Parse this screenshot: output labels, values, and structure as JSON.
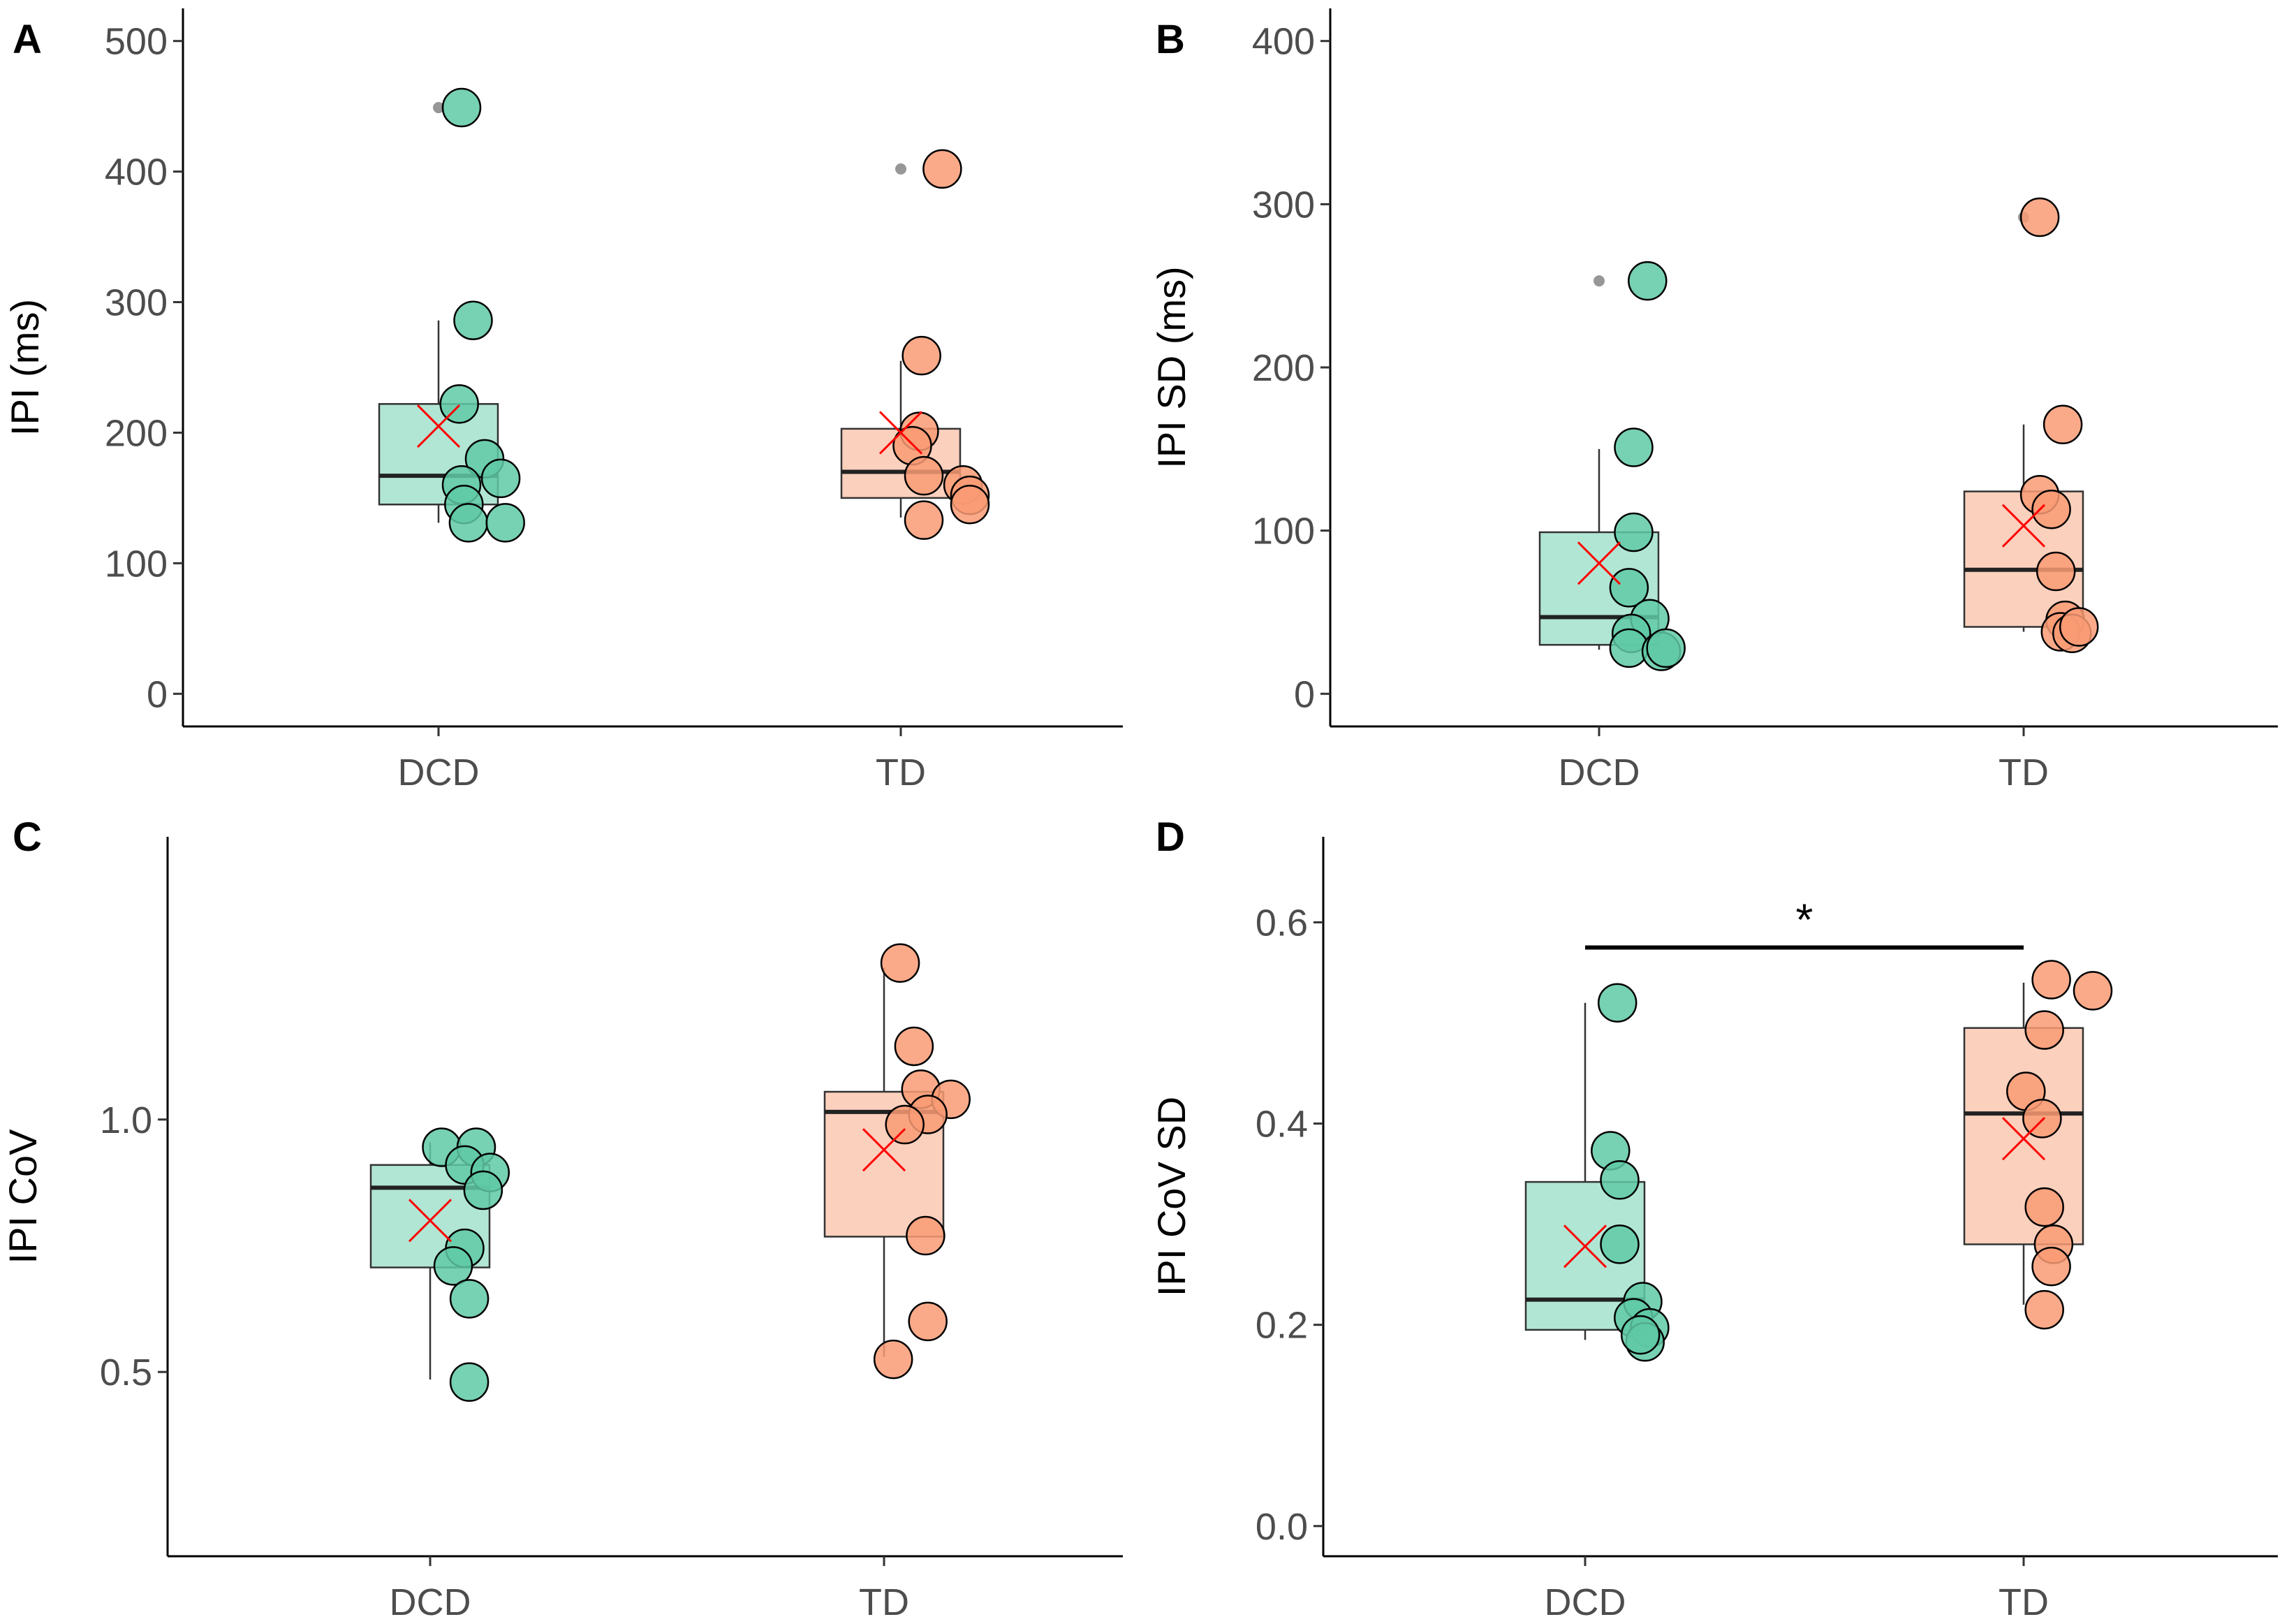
{
  "colors": {
    "DCD_fill": "#5fc9a6",
    "DCD_box": "#b2e6d4",
    "TD_fill": "#f99b74",
    "TD_box": "#fbd0bd",
    "mean_marker": "#ff0000",
    "outlier": "#8c8c8c",
    "stroke": "#000000"
  },
  "chart_data": [
    {
      "panel": "A",
      "type": "box",
      "ylabel": "IPI (ms)",
      "categories": [
        "DCD",
        "TD"
      ],
      "ylim": [
        -25,
        525
      ],
      "yticks": [
        0,
        100,
        200,
        300,
        400,
        500
      ],
      "series": [
        {
          "name": "DCD",
          "box": {
            "lower_whisker": 131,
            "q1": 145,
            "median": 167,
            "q3": 222,
            "upper_whisker": 286
          },
          "mean": 205,
          "outliers": [
            449
          ],
          "points": [
            {
              "offset": 0.1,
              "value": 449
            },
            {
              "offset": 0.15,
              "value": 286
            },
            {
              "offset": 0.09,
              "value": 222
            },
            {
              "offset": 0.2,
              "value": 180
            },
            {
              "offset": 0.27,
              "value": 165
            },
            {
              "offset": 0.1,
              "value": 160
            },
            {
              "offset": 0.11,
              "value": 145
            },
            {
              "offset": 0.13,
              "value": 131
            },
            {
              "offset": 0.29,
              "value": 131
            }
          ]
        },
        {
          "name": "TD",
          "box": {
            "lower_whisker": 135,
            "q1": 150,
            "median": 170,
            "q3": 203,
            "upper_whisker": 255
          },
          "mean": 200,
          "outliers": [
            402
          ],
          "points": [
            {
              "offset": 0.18,
              "value": 402
            },
            {
              "offset": 0.09,
              "value": 259
            },
            {
              "offset": 0.08,
              "value": 201
            },
            {
              "offset": 0.05,
              "value": 190
            },
            {
              "offset": 0.1,
              "value": 167
            },
            {
              "offset": 0.27,
              "value": 160
            },
            {
              "offset": 0.3,
              "value": 152
            },
            {
              "offset": 0.3,
              "value": 145
            },
            {
              "offset": 0.1,
              "value": 133
            }
          ]
        }
      ]
    },
    {
      "panel": "B",
      "type": "box",
      "ylabel": "IPI SD (ms)",
      "categories": [
        "DCD",
        "TD"
      ],
      "ylim": [
        -20,
        420
      ],
      "yticks": [
        0,
        100,
        200,
        300,
        400
      ],
      "series": [
        {
          "name": "DCD",
          "box": {
            "lower_whisker": 27,
            "q1": 30,
            "median": 47,
            "q3": 99,
            "upper_whisker": 150
          },
          "mean": 80,
          "outliers": [
            253
          ],
          "points": [
            {
              "offset": 0.21,
              "value": 253
            },
            {
              "offset": 0.15,
              "value": 151
            },
            {
              "offset": 0.15,
              "value": 99
            },
            {
              "offset": 0.13,
              "value": 65
            },
            {
              "offset": 0.22,
              "value": 46
            },
            {
              "offset": 0.14,
              "value": 37
            },
            {
              "offset": 0.13,
              "value": 28
            },
            {
              "offset": 0.27,
              "value": 26
            },
            {
              "offset": 0.29,
              "value": 28
            }
          ]
        },
        {
          "name": "TD",
          "box": {
            "lower_whisker": 38,
            "q1": 41,
            "median": 76,
            "q3": 124,
            "upper_whisker": 165
          },
          "mean": 103,
          "outliers": [
            292
          ],
          "points": [
            {
              "offset": 0.07,
              "value": 292
            },
            {
              "offset": 0.17,
              "value": 165
            },
            {
              "offset": 0.07,
              "value": 122
            },
            {
              "offset": 0.12,
              "value": 113
            },
            {
              "offset": 0.14,
              "value": 75
            },
            {
              "offset": 0.18,
              "value": 45
            },
            {
              "offset": 0.16,
              "value": 38
            },
            {
              "offset": 0.21,
              "value": 37
            },
            {
              "offset": 0.24,
              "value": 41
            }
          ]
        }
      ]
    },
    {
      "panel": "C",
      "type": "box",
      "ylabel": "IPI CoV",
      "categories": [
        "DCD",
        "TD"
      ],
      "ylim": [
        0.135,
        1.56
      ],
      "yticks": [
        0.5,
        1.0
      ],
      "tick_labels": [
        "0.5",
        "1.0"
      ],
      "series": [
        {
          "name": "DCD",
          "box": {
            "lower_whisker": 0.485,
            "q1": 0.707,
            "median": 0.865,
            "q3": 0.91,
            "upper_whisker": 0.955
          },
          "mean": 0.8,
          "outliers": [],
          "points": [
            {
              "offset": 0.05,
              "value": 0.945
            },
            {
              "offset": 0.2,
              "value": 0.945
            },
            {
              "offset": 0.15,
              "value": 0.91
            },
            {
              "offset": 0.26,
              "value": 0.895
            },
            {
              "offset": 0.23,
              "value": 0.86
            },
            {
              "offset": 0.15,
              "value": 0.745
            },
            {
              "offset": 0.1,
              "value": 0.71
            },
            {
              "offset": 0.17,
              "value": 0.645
            },
            {
              "offset": 0.17,
              "value": 0.48
            }
          ]
        },
        {
          "name": "TD",
          "box": {
            "lower_whisker": 0.53,
            "q1": 0.768,
            "median": 1.015,
            "q3": 1.055,
            "upper_whisker": 1.3
          },
          "mean": 0.94,
          "outliers": [],
          "points": [
            {
              "offset": 0.07,
              "value": 1.31
            },
            {
              "offset": 0.13,
              "value": 1.145
            },
            {
              "offset": 0.16,
              "value": 1.06
            },
            {
              "offset": 0.29,
              "value": 1.04
            },
            {
              "offset": 0.19,
              "value": 1.01
            },
            {
              "offset": 0.09,
              "value": 0.99
            },
            {
              "offset": 0.18,
              "value": 0.77
            },
            {
              "offset": 0.19,
              "value": 0.6
            },
            {
              "offset": 0.04,
              "value": 0.525
            }
          ]
        }
      ]
    },
    {
      "panel": "D",
      "type": "box",
      "ylabel": "IPI CoV SD",
      "categories": [
        "DCD",
        "TD"
      ],
      "ylim": [
        -0.03,
        0.685
      ],
      "yticks": [
        0.0,
        0.2,
        0.4,
        0.6
      ],
      "tick_labels": [
        "0.0",
        "0.2",
        "0.4",
        "0.6"
      ],
      "significance": {
        "label": "*",
        "from": "DCD",
        "to": "TD",
        "y": 0.575
      },
      "series": [
        {
          "name": "DCD",
          "box": {
            "lower_whisker": 0.185,
            "q1": 0.195,
            "median": 0.225,
            "q3": 0.342,
            "upper_whisker": 0.52
          },
          "mean": 0.278,
          "outliers": [],
          "points": [
            {
              "offset": 0.14,
              "value": 0.52
            },
            {
              "offset": 0.11,
              "value": 0.373
            },
            {
              "offset": 0.15,
              "value": 0.344
            },
            {
              "offset": 0.15,
              "value": 0.28
            },
            {
              "offset": 0.25,
              "value": 0.223
            },
            {
              "offset": 0.21,
              "value": 0.207
            },
            {
              "offset": 0.28,
              "value": 0.197
            },
            {
              "offset": 0.26,
              "value": 0.183
            },
            {
              "offset": 0.24,
              "value": 0.19
            }
          ]
        },
        {
          "name": "TD",
          "box": {
            "lower_whisker": 0.22,
            "q1": 0.28,
            "median": 0.41,
            "q3": 0.495,
            "upper_whisker": 0.54
          },
          "mean": 0.385,
          "outliers": [],
          "points": [
            {
              "offset": 0.12,
              "value": 0.543
            },
            {
              "offset": 0.3,
              "value": 0.532
            },
            {
              "offset": 0.09,
              "value": 0.493
            },
            {
              "offset": 0.01,
              "value": 0.432
            },
            {
              "offset": 0.08,
              "value": 0.405
            },
            {
              "offset": 0.09,
              "value": 0.317
            },
            {
              "offset": 0.13,
              "value": 0.28
            },
            {
              "offset": 0.12,
              "value": 0.258
            },
            {
              "offset": 0.09,
              "value": 0.215
            }
          ]
        }
      ]
    }
  ]
}
